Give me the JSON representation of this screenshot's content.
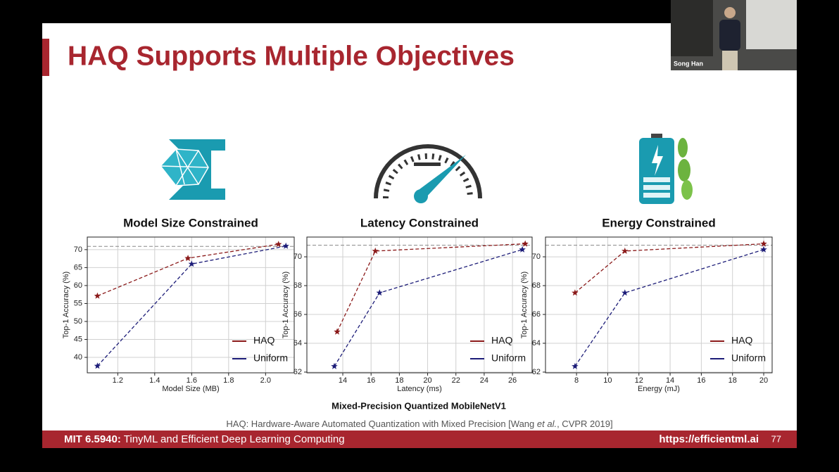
{
  "slide": {
    "title": "HAQ Supports Multiple Objectives",
    "caption": "Mixed-Precision Quantized MobileNetV1",
    "citation_before": "HAQ: Hardware-Aware Automated Quantization with Mixed Precision [Wang ",
    "citation_italic": "et al.",
    "citation_after": ", CVPR 2019]",
    "course_code": "MIT 6.5940:",
    "course_name": "TinyML and Efficient Deep Learning Computing",
    "url": "https://efficientml.ai",
    "page": "77",
    "speaker": "Song Han"
  },
  "chart_data": [
    {
      "type": "line",
      "title": "Model Size Constrained",
      "xlabel": "Model Size (MB)",
      "ylabel": "Top-1 Accuracy (%)",
      "xlim": [
        1.035,
        2.155
      ],
      "ylim": [
        35.7,
        73.5
      ],
      "xticks": [
        1.2,
        1.4,
        1.6,
        1.8,
        {
          "value": 2.0,
          "label": "2.0"
        }
      ],
      "yticks": [
        40,
        45,
        50,
        55,
        60,
        65,
        70
      ],
      "grid": true,
      "legend": "lower right",
      "reference": 70.9,
      "series": [
        {
          "name": "HAQ",
          "color": "#8b1a1a",
          "x": [
            1.09,
            1.58,
            2.07
          ],
          "values": [
            57.1,
            67.6,
            71.5
          ]
        },
        {
          "name": "Uniform",
          "color": "#1c1c78",
          "x": [
            1.09,
            1.6,
            2.11
          ],
          "values": [
            37.6,
            66.0,
            71.0
          ]
        }
      ]
    },
    {
      "type": "line",
      "title": "Latency Constrained",
      "xlabel": "Latency (ms)",
      "ylabel": "Top-1 Accuracy (%)",
      "xlim": [
        11.46,
        27.39
      ],
      "ylim": [
        61.95,
        71.37
      ],
      "xticks": [
        14,
        16,
        18,
        20,
        22,
        24,
        26
      ],
      "yticks": [
        62,
        64,
        66,
        68,
        70
      ],
      "grid": true,
      "legend": "lower right",
      "reference": 70.8,
      "series": [
        {
          "name": "HAQ",
          "color": "#8b1a1a",
          "x": [
            13.6,
            16.3,
            26.9
          ],
          "values": [
            64.8,
            70.4,
            70.9
          ]
        },
        {
          "name": "Uniform",
          "color": "#1c1c78",
          "x": [
            13.4,
            16.6,
            26.7
          ],
          "values": [
            62.4,
            67.5,
            70.5
          ]
        }
      ]
    },
    {
      "type": "line",
      "title": "Energy Constrained",
      "xlabel": "Energy (mJ)",
      "ylabel": "Top-1 Accuracy (%)",
      "xlim": [
        6.01,
        20.54
      ],
      "ylim": [
        61.95,
        71.37
      ],
      "xticks": [
        8,
        10,
        12,
        14,
        16,
        18,
        20
      ],
      "yticks": [
        62,
        64,
        66,
        68,
        70
      ],
      "grid": true,
      "legend": "lower right",
      "reference": 70.8,
      "series": [
        {
          "name": "HAQ",
          "color": "#8b1a1a",
          "x": [
            7.9,
            11.1,
            20.0
          ],
          "values": [
            67.5,
            70.4,
            70.9
          ]
        },
        {
          "name": "Uniform",
          "color": "#1c1c78",
          "x": [
            7.9,
            11.1,
            20.0
          ],
          "values": [
            62.4,
            67.5,
            70.5
          ]
        }
      ]
    }
  ]
}
